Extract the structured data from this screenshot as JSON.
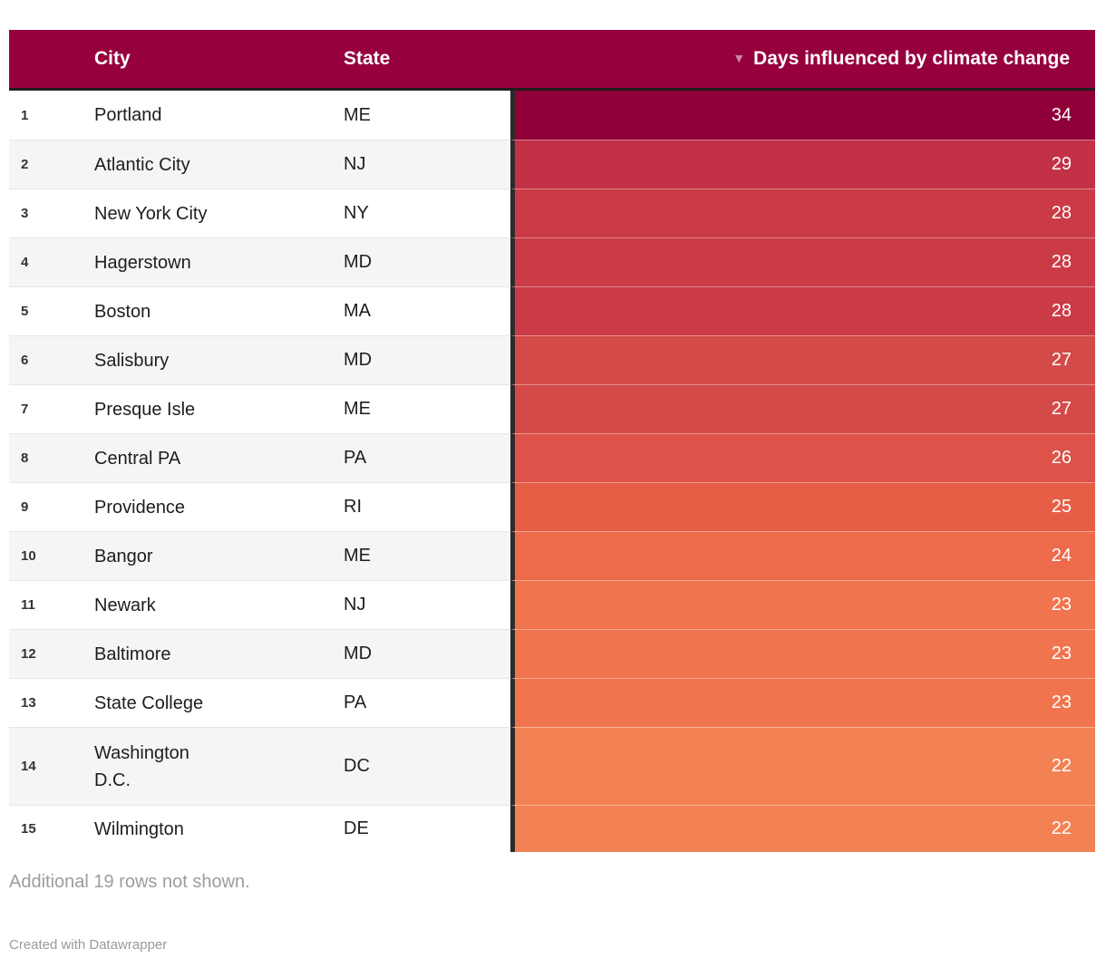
{
  "header": {
    "rank_label": "",
    "city_label": "City",
    "state_label": "State",
    "value_label": "Days influenced by climate change",
    "sort_icon": "▼"
  },
  "rows": [
    {
      "rank": "1",
      "city": "Portland",
      "state": "ME",
      "value": "34",
      "color": "#8F0039"
    },
    {
      "rank": "2",
      "city": "Atlantic City",
      "state": "NJ",
      "value": "29",
      "color": "#C33147"
    },
    {
      "rank": "3",
      "city": "New York City",
      "state": "NY",
      "value": "28",
      "color": "#CB3B46"
    },
    {
      "rank": "4",
      "city": "Hagerstown",
      "state": "MD",
      "value": "28",
      "color": "#CB3B46"
    },
    {
      "rank": "5",
      "city": "Boston",
      "state": "MA",
      "value": "28",
      "color": "#CB3B46"
    },
    {
      "rank": "6",
      "city": "Salisbury",
      "state": "MD",
      "value": "27",
      "color": "#D34A48"
    },
    {
      "rank": "7",
      "city": "Presque Isle",
      "state": "ME",
      "value": "27",
      "color": "#D34A48"
    },
    {
      "rank": "8",
      "city": "Central PA",
      "state": "PA",
      "value": "26",
      "color": "#DD5349"
    },
    {
      "rank": "9",
      "city": "Providence",
      "state": "RI",
      "value": "25",
      "color": "#E75E47"
    },
    {
      "rank": "10",
      "city": "Bangor",
      "state": "ME",
      "value": "24",
      "color": "#ED6A4B"
    },
    {
      "rank": "11",
      "city": "Newark",
      "state": "NJ",
      "value": "23",
      "color": "#F0744E"
    },
    {
      "rank": "12",
      "city": "Baltimore",
      "state": "MD",
      "value": "23",
      "color": "#F0744E"
    },
    {
      "rank": "13",
      "city": "State College",
      "state": "PA",
      "value": "23",
      "color": "#F0744E"
    },
    {
      "rank": "14",
      "city": "Washington\nD.C.",
      "state": "DC",
      "value": "22",
      "color": "#F28254"
    },
    {
      "rank": "15",
      "city": "Wilmington",
      "state": "DE",
      "value": "22",
      "color": "#F28254"
    }
  ],
  "footnote": "Additional 19 rows not shown.",
  "credit": "Created with Datawrapper",
  "colors": {
    "header_bg": "#96003D",
    "header_text": "#FFFFFF",
    "sort_arrow": "#C98BA6",
    "divider_dark": "#1E1E1E",
    "value_column_border": "#2B2B2B",
    "stripe_gray": "#F5F5F5",
    "row_text": "#1D1D1D",
    "value_text": "#FFFFFF",
    "footnote_text": "#9C9C9C"
  },
  "chart_data": {
    "type": "table",
    "title": "Days influenced by climate change",
    "columns": [
      "Rank",
      "City",
      "State",
      "Days influenced by climate change"
    ],
    "sort": {
      "column": "Days influenced by climate change",
      "direction": "descending"
    },
    "rows": [
      [
        1,
        "Portland",
        "ME",
        34
      ],
      [
        2,
        "Atlantic City",
        "NJ",
        29
      ],
      [
        3,
        "New York City",
        "NY",
        28
      ],
      [
        4,
        "Hagerstown",
        "MD",
        28
      ],
      [
        5,
        "Boston",
        "MA",
        28
      ],
      [
        6,
        "Salisbury",
        "MD",
        27
      ],
      [
        7,
        "Presque Isle",
        "ME",
        27
      ],
      [
        8,
        "Central PA",
        "PA",
        26
      ],
      [
        9,
        "Providence",
        "RI",
        25
      ],
      [
        10,
        "Bangor",
        "ME",
        24
      ],
      [
        11,
        "Newark",
        "NJ",
        23
      ],
      [
        12,
        "Baltimore",
        "MD",
        23
      ],
      [
        13,
        "State College",
        "PA",
        23
      ],
      [
        14,
        "Washington D.C.",
        "DC",
        22
      ],
      [
        15,
        "Wilmington",
        "DE",
        22
      ]
    ],
    "value_range_shown": [
      22,
      34
    ],
    "heatmap": true,
    "note": "Additional 19 rows not shown."
  }
}
